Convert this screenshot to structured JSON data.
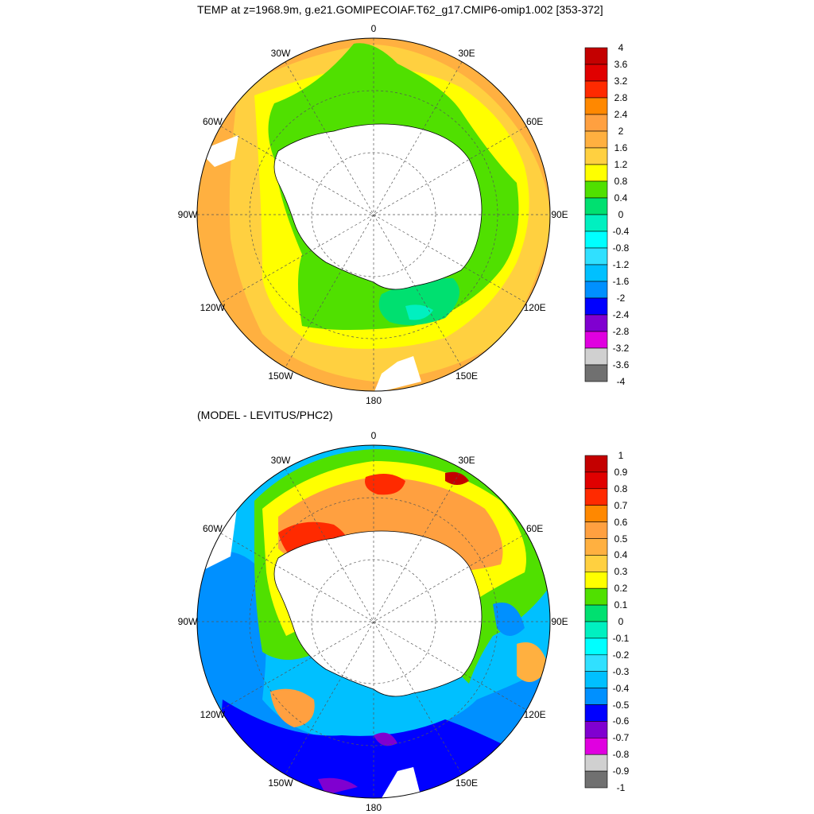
{
  "titles": {
    "top": "TEMP at z=1968.9m, g.e21.GOMIPECOIAF.T62_g17.CMIP6-omip1.002 [353-372]",
    "bottom": "(MODEL - LEVITUS/PHC2)"
  },
  "longitude_labels": [
    "0",
    "30E",
    "60E",
    "90E",
    "120E",
    "150E",
    "180",
    "150W",
    "120W",
    "90W",
    "60W",
    "30W"
  ],
  "colorbar_top": {
    "labels": [
      "4",
      "3.6",
      "3.2",
      "2.8",
      "2.4",
      "2",
      "1.6",
      "1.2",
      "0.8",
      "0.4",
      "0",
      "-0.4",
      "-0.8",
      "-1.2",
      "-1.6",
      "-2",
      "-2.4",
      "-2.8",
      "-3.2",
      "-3.6",
      "-4"
    ],
    "colors": [
      "#c40000",
      "#e00000",
      "#ff2a00",
      "#ff8800",
      "#ffa040",
      "#ffb040",
      "#ffd040",
      "#ffff00",
      "#50e000",
      "#00e070",
      "#00f0c0",
      "#00ffff",
      "#30e0ff",
      "#00c0ff",
      "#0090ff",
      "#0000ff",
      "#8000d0",
      "#e000e0",
      "#d0d0d0",
      "#707070"
    ]
  },
  "colorbar_bottom": {
    "labels": [
      "1",
      "0.9",
      "0.8",
      "0.7",
      "0.6",
      "0.5",
      "0.4",
      "0.3",
      "0.2",
      "0.1",
      "0",
      "-0.1",
      "-0.2",
      "-0.3",
      "-0.4",
      "-0.5",
      "-0.6",
      "-0.7",
      "-0.8",
      "-0.9",
      "-1"
    ],
    "colors": [
      "#c40000",
      "#e00000",
      "#ff2a00",
      "#ff8800",
      "#ffa040",
      "#ffb040",
      "#ffd040",
      "#ffff00",
      "#50e000",
      "#00e070",
      "#00f0c0",
      "#00ffff",
      "#30e0ff",
      "#00c0ff",
      "#0090ff",
      "#0000ff",
      "#8000d0",
      "#e000e0",
      "#d0d0d0",
      "#707070"
    ]
  }
}
